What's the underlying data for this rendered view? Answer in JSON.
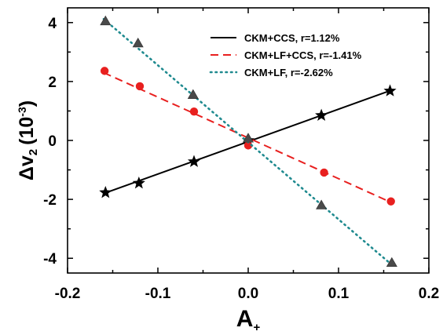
{
  "chart_data": {
    "type": "line",
    "title": "",
    "xlabel": "A",
    "xlabel_sub": "+",
    "ylabel": "Δv",
    "ylabel_sub": "2",
    "ylabel_unit": "(10",
    "ylabel_unit_sup": "-3",
    "ylabel_unit_close": ")",
    "xlim": [
      -0.2,
      0.2
    ],
    "ylim": [
      -4.5,
      4.5
    ],
    "x_ticks": [
      -0.2,
      -0.1,
      0.0,
      0.1,
      0.2
    ],
    "x_tick_labels": [
      "-0.2",
      "-0.1",
      "0.0",
      "0.1",
      "0.2"
    ],
    "y_ticks": [
      -4,
      -2,
      0,
      2,
      4
    ],
    "y_tick_labels": [
      "-4",
      "-2",
      "0",
      "2",
      "4"
    ],
    "grid": false,
    "legend_position": "top-right",
    "series": [
      {
        "name": "CKM+CCS, r=1.12%",
        "color": "#000000",
        "line_style": "solid",
        "marker": "star",
        "points": [
          [
            -0.158,
            -1.77
          ],
          [
            -0.121,
            -1.45
          ],
          [
            -0.06,
            -0.72
          ],
          [
            0.0,
            0.0
          ],
          [
            0.081,
            0.85
          ],
          [
            0.157,
            1.68
          ]
        ],
        "fit": [
          [
            -0.158,
            -1.78
          ],
          [
            0.158,
            1.7
          ]
        ]
      },
      {
        "name": "CKM+LF+CCS, r=-1.41%",
        "color": "#e8201f",
        "line_style": "dashed",
        "marker": "circle",
        "points": [
          [
            -0.159,
            2.36
          ],
          [
            -0.12,
            1.84
          ],
          [
            -0.06,
            0.98
          ],
          [
            0.0,
            -0.17
          ],
          [
            0.084,
            -1.09
          ],
          [
            0.158,
            -2.07
          ]
        ],
        "fit": [
          [
            -0.16,
            2.3
          ],
          [
            0.158,
            -2.1
          ]
        ]
      },
      {
        "name": "CKM+LF, r=-2.62%",
        "color": "#1f8a8f",
        "line_style": "dotted",
        "marker": "triangle",
        "points": [
          [
            -0.158,
            4.05
          ],
          [
            -0.122,
            3.3
          ],
          [
            -0.061,
            1.55
          ],
          [
            0.0,
            0.07
          ],
          [
            0.081,
            -2.2
          ],
          [
            0.159,
            -4.15
          ]
        ],
        "fit": [
          [
            -0.16,
            4.12
          ],
          [
            0.162,
            -4.3
          ]
        ]
      }
    ]
  }
}
